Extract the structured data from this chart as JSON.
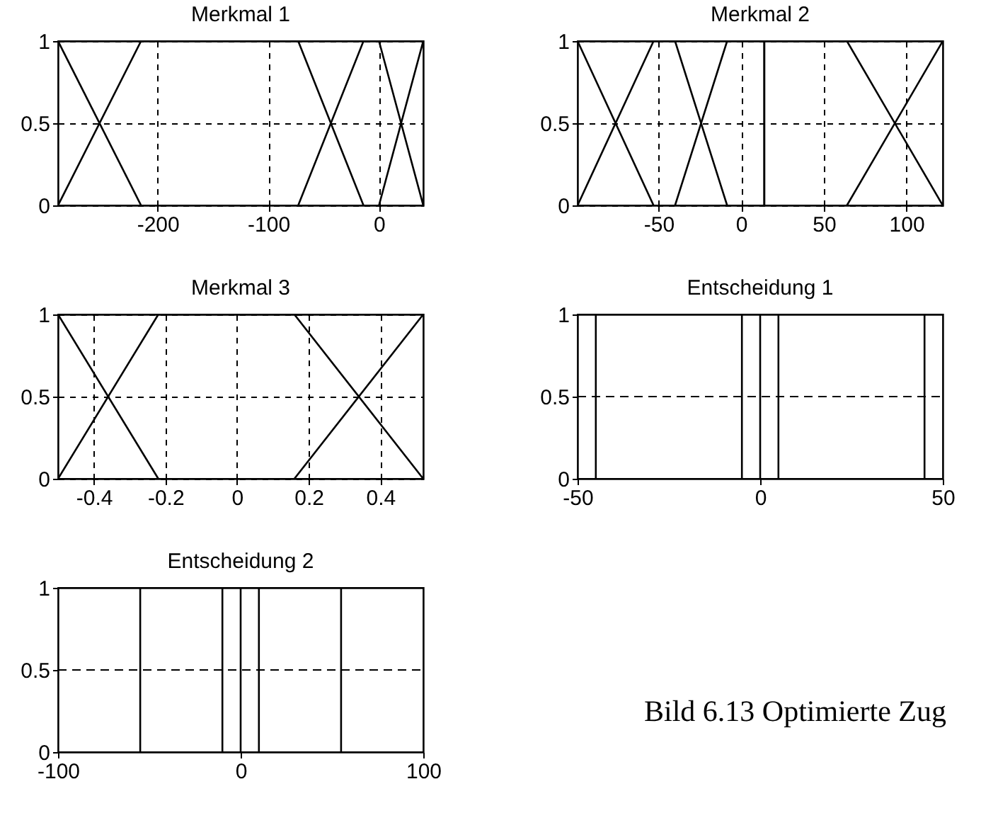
{
  "chart_data": [
    {
      "type": "line",
      "title": "Merkmal 1",
      "xlim": [
        -290,
        40
      ],
      "xticks": [
        -200,
        -100,
        0
      ],
      "ylim": [
        0,
        1
      ],
      "yticks": [
        0,
        0.5,
        1
      ],
      "grid": true,
      "line_style": "solid",
      "series": [
        {
          "color": "#000000",
          "x": [
            -290,
            -215
          ],
          "values": [
            1,
            0
          ]
        },
        {
          "color": "#000000",
          "x": [
            -290,
            -215,
            -73,
            -14
          ],
          "values": [
            0,
            1,
            1,
            0
          ]
        },
        {
          "color": "#000000",
          "x": [
            -73,
            -14,
            0,
            40
          ],
          "values": [
            0,
            1,
            1,
            0
          ]
        },
        {
          "color": "#000000",
          "x": [
            0,
            40
          ],
          "values": [
            0,
            1
          ]
        }
      ]
    },
    {
      "type": "line",
      "title": "Merkmal 2",
      "xlim": [
        -99,
        122
      ],
      "xticks": [
        -50,
        0,
        50,
        100
      ],
      "ylim": [
        0,
        1
      ],
      "yticks": [
        0,
        0.5,
        1
      ],
      "grid": true,
      "line_style": "solid",
      "series": [
        {
          "color": "#000000",
          "x": [
            -99,
            -53
          ],
          "values": [
            1,
            0
          ]
        },
        {
          "color": "#000000",
          "x": [
            -99,
            -53,
            -40,
            -8.5
          ],
          "values": [
            0,
            1,
            1,
            0
          ]
        },
        {
          "color": "#000000",
          "x": [
            -40,
            -8.5,
            14,
            14
          ],
          "values": [
            0,
            1,
            1,
            0
          ]
        },
        {
          "color": "#000000",
          "x": [
            14,
            14,
            64,
            122
          ],
          "values": [
            0,
            1,
            1,
            0
          ]
        },
        {
          "color": "#000000",
          "x": [
            64,
            122
          ],
          "values": [
            0,
            1
          ]
        }
      ]
    },
    {
      "type": "line",
      "title": "Merkmal 3",
      "xlim": [
        -0.5,
        0.52
      ],
      "xticks": [
        -0.4,
        -0.2,
        0,
        0.2,
        0.4
      ],
      "ylim": [
        0,
        1
      ],
      "yticks": [
        0,
        0.5,
        1
      ],
      "grid": true,
      "line_style": "solid",
      "series": [
        {
          "color": "#000000",
          "x": [
            -0.5,
            -0.22
          ],
          "values": [
            1,
            0
          ]
        },
        {
          "color": "#000000",
          "x": [
            -0.5,
            -0.22,
            0.16,
            0.52
          ],
          "values": [
            0,
            1,
            1,
            0
          ]
        },
        {
          "color": "#000000",
          "x": [
            0.16,
            0.52
          ],
          "values": [
            0,
            1
          ]
        }
      ]
    },
    {
      "type": "line",
      "title": "Entscheidung 1",
      "xlim": [
        -50,
        50
      ],
      "xticks": [
        -50,
        0,
        50
      ],
      "ylim": [
        0,
        1
      ],
      "yticks": [
        0,
        0.5,
        1
      ],
      "ref_lines": [
        {
          "axis": "y",
          "value": 0.5,
          "color": "#000000",
          "line_style": "dashed"
        }
      ],
      "line_style": "solid",
      "series": [
        {
          "color": "#000000",
          "x": [
            -45,
            -45
          ],
          "values": [
            0,
            1
          ]
        },
        {
          "color": "#000000",
          "x": [
            -5,
            -5
          ],
          "values": [
            0,
            1
          ]
        },
        {
          "color": "#000000",
          "x": [
            0,
            0
          ],
          "values": [
            0,
            1
          ]
        },
        {
          "color": "#000000",
          "x": [
            5,
            5
          ],
          "values": [
            0,
            1
          ]
        },
        {
          "color": "#000000",
          "x": [
            45,
            45
          ],
          "values": [
            0,
            1
          ]
        }
      ]
    },
    {
      "type": "line",
      "title": "Entscheidung 2",
      "xlim": [
        -100,
        100
      ],
      "xticks": [
        -100,
        0,
        100
      ],
      "ylim": [
        0,
        1
      ],
      "yticks": [
        0,
        0.5,
        1
      ],
      "ref_lines": [
        {
          "axis": "y",
          "value": 0.5,
          "color": "#000000",
          "line_style": "dashed"
        }
      ],
      "line_style": "solid",
      "annotations": [
        "Bild 6.13  Optimierte Zug"
      ],
      "series": [
        {
          "color": "#000000",
          "x": [
            -55,
            -55
          ],
          "values": [
            0,
            1
          ]
        },
        {
          "color": "#000000",
          "x": [
            -10,
            -10
          ],
          "values": [
            0,
            1
          ]
        },
        {
          "color": "#000000",
          "x": [
            0,
            0
          ],
          "values": [
            0,
            1
          ]
        },
        {
          "color": "#000000",
          "x": [
            10,
            10
          ],
          "values": [
            0,
            1
          ]
        },
        {
          "color": "#000000",
          "x": [
            55,
            55
          ],
          "values": [
            0,
            1
          ]
        }
      ]
    }
  ]
}
